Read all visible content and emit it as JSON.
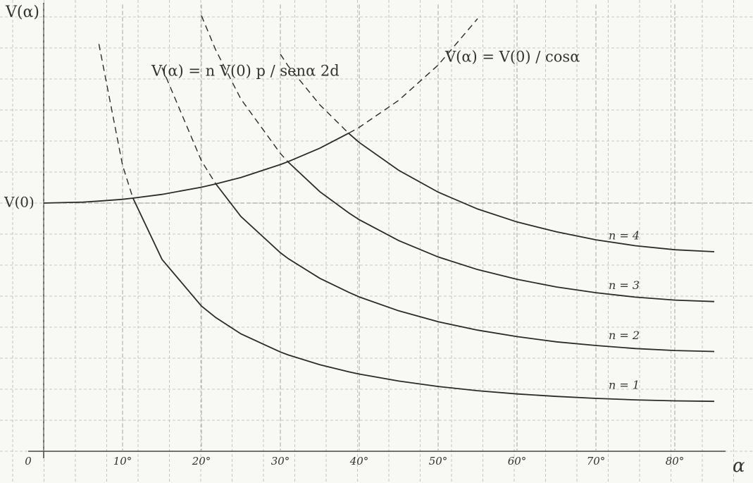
{
  "chart_data": {
    "type": "line",
    "y_label": "V(α)",
    "x_label": "α",
    "annotations": [
      "V(α) = n V(0) p / senα 2d",
      "V(α) = V(0) / cosα"
    ],
    "x": [
      0,
      5,
      7,
      10,
      11.3,
      15,
      20,
      21.8,
      25,
      30,
      31,
      35,
      38.7,
      40,
      45,
      50,
      55,
      60,
      65,
      70,
      75,
      80,
      85
    ],
    "xlim": [
      0,
      90
    ],
    "ylim": [
      0,
      1.8
    ],
    "xticks": [
      0,
      {
        "value": 10,
        "label": "10°"
      },
      {
        "value": 20,
        "label": "20°"
      },
      {
        "value": 30,
        "label": "30°"
      },
      {
        "value": 40,
        "label": "40°"
      },
      {
        "value": 50,
        "label": "50°"
      },
      {
        "value": 60,
        "label": "60°"
      },
      {
        "value": 70,
        "label": "70°"
      },
      {
        "value": 80,
        "label": "80°"
      }
    ],
    "yticks": [
      {
        "value": 1,
        "label": "V(0)"
      }
    ],
    "grid": true,
    "series": [
      {
        "color": "#2b2b2b",
        "dash": false,
        "values": [
          1,
          1.004,
          1.008,
          1.015,
          1.02,
          1.035,
          1.064,
          1.077,
          1.103,
          1.155,
          1.167,
          1.221,
          1.282,
          null,
          null,
          null,
          null,
          null,
          null,
          null,
          null,
          null,
          null
        ]
      },
      {
        "color": "#2b2b2b",
        "dash": true,
        "values": [
          null,
          null,
          null,
          null,
          null,
          null,
          null,
          null,
          null,
          null,
          null,
          null,
          1.282,
          1.305,
          1.414,
          1.556,
          1.743,
          null,
          null,
          null,
          null,
          null,
          null
        ]
      },
      {
        "name": "n = 1",
        "color": "#2b2b2b",
        "dash": false,
        "values": [
          null,
          null,
          null,
          null,
          1.021,
          0.773,
          0.585,
          0.539,
          0.473,
          0.4,
          0.388,
          0.349,
          0.32,
          0.311,
          0.283,
          0.261,
          0.244,
          0.231,
          0.221,
          0.213,
          0.207,
          0.203,
          0.201
        ]
      },
      {
        "color": "#2b2b2b",
        "dash": true,
        "values": [
          null,
          null,
          1.641,
          1.152,
          1.021,
          null,
          null,
          null,
          null,
          null,
          null,
          null,
          null,
          null,
          null,
          null,
          null,
          null,
          null,
          null,
          null,
          null,
          null
        ]
      },
      {
        "name": "n = 2",
        "color": "#2b2b2b",
        "dash": false,
        "values": [
          null,
          null,
          null,
          null,
          null,
          null,
          null,
          1.078,
          0.946,
          0.8,
          0.776,
          0.697,
          0.64,
          0.622,
          0.566,
          0.522,
          0.488,
          0.462,
          0.441,
          0.426,
          0.414,
          0.406,
          0.402
        ]
      },
      {
        "color": "#2b2b2b",
        "dash": true,
        "values": [
          null,
          null,
          null,
          null,
          null,
          1.546,
          1.17,
          1.078,
          null,
          null,
          null,
          null,
          null,
          null,
          null,
          null,
          null,
          null,
          null,
          null,
          null,
          null,
          null
        ]
      },
      {
        "name": "n = 3",
        "color": "#2b2b2b",
        "dash": false,
        "values": [
          null,
          null,
          null,
          null,
          null,
          null,
          null,
          null,
          null,
          null,
          1.165,
          1.046,
          0.96,
          0.933,
          0.849,
          0.783,
          0.732,
          0.693,
          0.662,
          0.639,
          0.621,
          0.609,
          0.603
        ]
      },
      {
        "color": "#2b2b2b",
        "dash": true,
        "values": [
          null,
          null,
          null,
          null,
          null,
          null,
          1.755,
          1.617,
          1.419,
          1.2,
          1.165,
          null,
          null,
          null,
          null,
          null,
          null,
          null,
          null,
          null,
          null,
          null,
          null
        ]
      },
      {
        "name": "n = 4",
        "color": "#2b2b2b",
        "dash": false,
        "values": [
          null,
          null,
          null,
          null,
          null,
          null,
          null,
          null,
          null,
          null,
          null,
          null,
          1.28,
          1.244,
          1.132,
          1.044,
          0.976,
          0.924,
          0.884,
          0.852,
          0.828,
          0.812,
          0.804
        ]
      },
      {
        "color": "#2b2b2b",
        "dash": true,
        "values": [
          null,
          null,
          null,
          null,
          null,
          null,
          null,
          null,
          null,
          1.6,
          1.552,
          1.396,
          1.28,
          null,
          null,
          null,
          null,
          null,
          null,
          null,
          null,
          null,
          null
        ]
      }
    ]
  }
}
